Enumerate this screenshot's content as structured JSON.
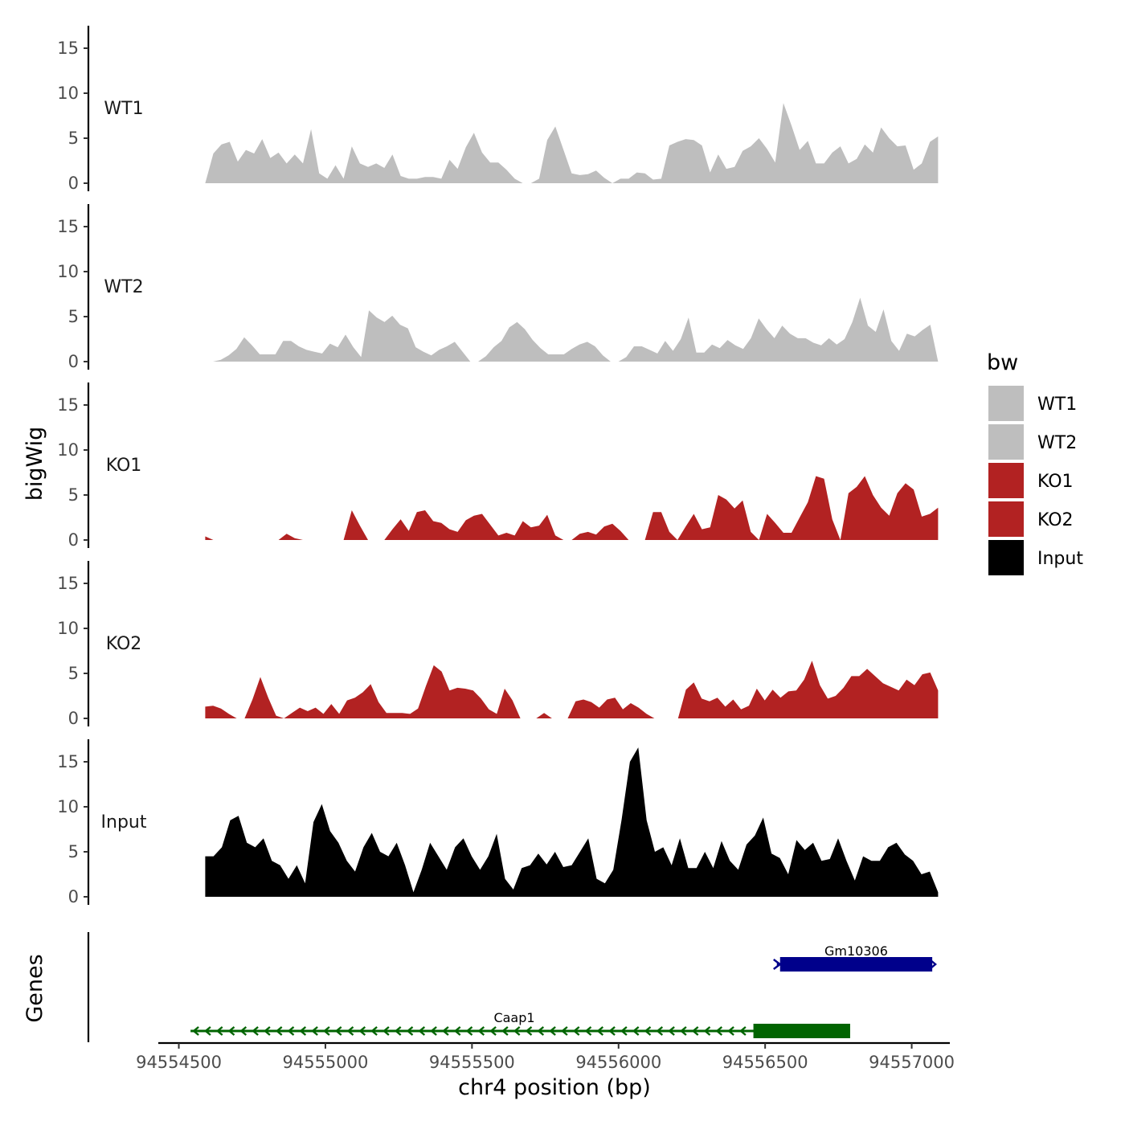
{
  "chart_data": {
    "type": "area",
    "ylabel": "bigWig",
    "genes_label": "Genes",
    "xlabel": "chr4 position (bp)",
    "xlim": [
      94554430,
      94557130
    ],
    "x_data_range": [
      94554590,
      94557090
    ],
    "x_ticks": [
      94554500,
      94555000,
      94555500,
      94556000,
      94556500,
      94557000
    ],
    "x_tick_labels": [
      "94554500",
      "94555000",
      "94555500",
      "94556000",
      "94556500",
      "94557000"
    ],
    "ylim": [
      0,
      17.5
    ],
    "y_ticks": [
      0,
      5,
      10,
      15
    ],
    "y_tick_labels": [
      "0",
      "5",
      "10",
      "15"
    ],
    "legend": {
      "title": "bw",
      "entries": [
        {
          "label": "WT1",
          "color": "#bebebe"
        },
        {
          "label": "WT2",
          "color": "#bebebe"
        },
        {
          "label": "KO1",
          "color": "#b22222"
        },
        {
          "label": "KO2",
          "color": "#b22222"
        },
        {
          "label": "Input",
          "color": "#000000"
        }
      ]
    },
    "tracks": [
      {
        "name": "WT1",
        "color": "#bebebe",
        "values": [
          0,
          3.3,
          4.3,
          4.6,
          2.4,
          3.7,
          3.3,
          4.9,
          2.8,
          3.4,
          2.2,
          3.2,
          2.2,
          6,
          1.1,
          0.5,
          2,
          0.5,
          4.1,
          2.2,
          1.8,
          2.2,
          1.7,
          3.2,
          0.8,
          0.5,
          0.5,
          0.7,
          0.7,
          0.5,
          2.6,
          1.6,
          4,
          5.6,
          3.4,
          2.3,
          2.3,
          1.5,
          0.5,
          0,
          0,
          0.5,
          4.8,
          6.3,
          3.7,
          1.1,
          0.9,
          1,
          1.4,
          0.6,
          0,
          0.5,
          0.5,
          1.2,
          1.1,
          0.4,
          0.5,
          4.2,
          4.6,
          4.9,
          4.8,
          4.2,
          1.2,
          3.2,
          1.6,
          1.8,
          3.6,
          4.1,
          5,
          3.8,
          2.3,
          8.9,
          6.4,
          3.7,
          4.7,
          2.2,
          2.2,
          3.4,
          4.1,
          2.2,
          2.7,
          4.3,
          3.4,
          6.2,
          5,
          4.1,
          4.2,
          1.5,
          2.2,
          4.6,
          5.2
        ]
      },
      {
        "name": "WT2",
        "color": "#bebebe",
        "values": [
          0,
          0,
          0.2,
          0.7,
          1.4,
          2.7,
          1.8,
          0.8,
          0.8,
          0.8,
          2.3,
          2.3,
          1.7,
          1.3,
          1.1,
          0.9,
          2,
          1.6,
          3,
          1.6,
          0.5,
          5.7,
          4.9,
          4.4,
          5.1,
          4.1,
          3.7,
          1.6,
          1.1,
          0.7,
          1.3,
          1.7,
          2.2,
          1.1,
          0,
          0,
          0.6,
          1.6,
          2.3,
          3.8,
          4.4,
          3.6,
          2.4,
          1.5,
          0.8,
          0.8,
          0.8,
          1.4,
          1.9,
          2.2,
          1.7,
          0.7,
          0,
          0,
          0.5,
          1.7,
          1.7,
          1.3,
          0.9,
          2.3,
          1.2,
          2.5,
          4.9,
          1,
          1,
          1.9,
          1.5,
          2.4,
          1.8,
          1.4,
          2.6,
          4.8,
          3.6,
          2.6,
          4,
          3.1,
          2.6,
          2.6,
          2.1,
          1.8,
          2.6,
          1.9,
          2.5,
          4.4,
          7.1,
          4,
          3.3,
          5.8,
          2.3,
          1.2,
          3.1,
          2.8,
          3.5,
          4.1,
          0
        ]
      },
      {
        "name": "KO1",
        "color": "#b22222",
        "values": [
          0.4,
          0,
          0,
          0,
          0,
          0,
          0,
          0,
          0,
          0,
          0.7,
          0.2,
          0,
          0,
          0,
          0,
          0,
          0,
          3.3,
          1.6,
          0,
          0,
          0,
          1.2,
          2.3,
          1,
          3.1,
          3.3,
          2.1,
          1.9,
          1.2,
          0.9,
          2.2,
          2.7,
          2.9,
          1.7,
          0.5,
          0.8,
          0.5,
          2.1,
          1.4,
          1.6,
          2.8,
          0.5,
          0,
          0,
          0.7,
          0.9,
          0.6,
          1.5,
          1.8,
          1,
          0,
          0,
          0,
          3.1,
          3.1,
          0.9,
          0,
          1.5,
          2.9,
          1.2,
          1.4,
          5,
          4.5,
          3.5,
          4.4,
          0.9,
          0,
          2.9,
          1.9,
          0.8,
          0.8,
          2.5,
          4.2,
          7.1,
          6.8,
          2.3,
          0,
          5.2,
          5.9,
          7.1,
          5,
          3.6,
          2.7,
          5.2,
          6.3,
          5.6,
          2.6,
          2.9,
          3.6
        ]
      },
      {
        "name": "KO2",
        "color": "#b22222",
        "values": [
          1.3,
          1.4,
          1.1,
          0.5,
          0,
          0,
          2.1,
          4.6,
          2.3,
          0.3,
          0,
          0.6,
          1.2,
          0.8,
          1.2,
          0.5,
          1.6,
          0.5,
          2,
          2.3,
          2.9,
          3.8,
          1.8,
          0.6,
          0.6,
          0.6,
          0.5,
          1.1,
          3.6,
          5.9,
          5.2,
          3.1,
          3.4,
          3.3,
          3.1,
          2.2,
          1,
          0.5,
          3.3,
          2,
          0,
          0,
          0,
          0.6,
          0,
          0,
          0,
          1.9,
          2.1,
          1.8,
          1.2,
          2.1,
          2.3,
          1,
          1.7,
          1.2,
          0.5,
          0,
          0,
          0,
          0,
          3.2,
          4,
          2.2,
          1.9,
          2.3,
          1.3,
          2.1,
          1,
          1.4,
          3.3,
          2,
          3.2,
          2.3,
          3,
          3.1,
          4.3,
          6.4,
          3.7,
          2.2,
          2.5,
          3.4,
          4.7,
          4.7,
          5.5,
          4.7,
          3.9,
          3.5,
          3.1,
          4.3,
          3.7,
          4.9,
          5.1,
          3.1
        ]
      },
      {
        "name": "Input",
        "color": "#000000",
        "values": [
          4.5,
          4.5,
          5.5,
          8.5,
          9,
          6,
          5.5,
          6.5,
          4,
          3.5,
          2,
          3.5,
          1.5,
          8.3,
          10.3,
          7.3,
          6,
          4,
          2.8,
          5.5,
          7.1,
          5,
          4.5,
          6,
          3.5,
          0.5,
          3,
          6,
          4.5,
          3,
          5.5,
          6.5,
          4.5,
          3,
          4.5,
          7,
          2,
          0.8,
          3.2,
          3.5,
          4.8,
          3.6,
          5,
          3.3,
          3.5,
          5,
          6.5,
          2,
          1.5,
          3,
          8.6,
          15,
          16.6,
          8.5,
          5,
          5.5,
          3.5,
          6.5,
          3.2,
          3.2,
          5,
          3.2,
          6.2,
          4,
          3,
          5.8,
          6.8,
          8.8,
          4.8,
          4.3,
          2.5,
          6.3,
          5.2,
          6,
          4,
          4.2,
          6.5,
          4,
          1.8,
          4.5,
          4,
          4,
          5.5,
          6,
          4.7,
          4,
          2.5,
          2.8,
          0.5
        ]
      }
    ],
    "genes": [
      {
        "name": "Gm10306",
        "strand": "+",
        "start": 94556540,
        "end": 94557070,
        "color": "#00008b"
      },
      {
        "name": "Caap1",
        "strand": "-",
        "start": 94554540,
        "end": 94556790,
        "thick_start": 94556460,
        "thick_end": 94556790,
        "color": "#006400"
      }
    ]
  }
}
